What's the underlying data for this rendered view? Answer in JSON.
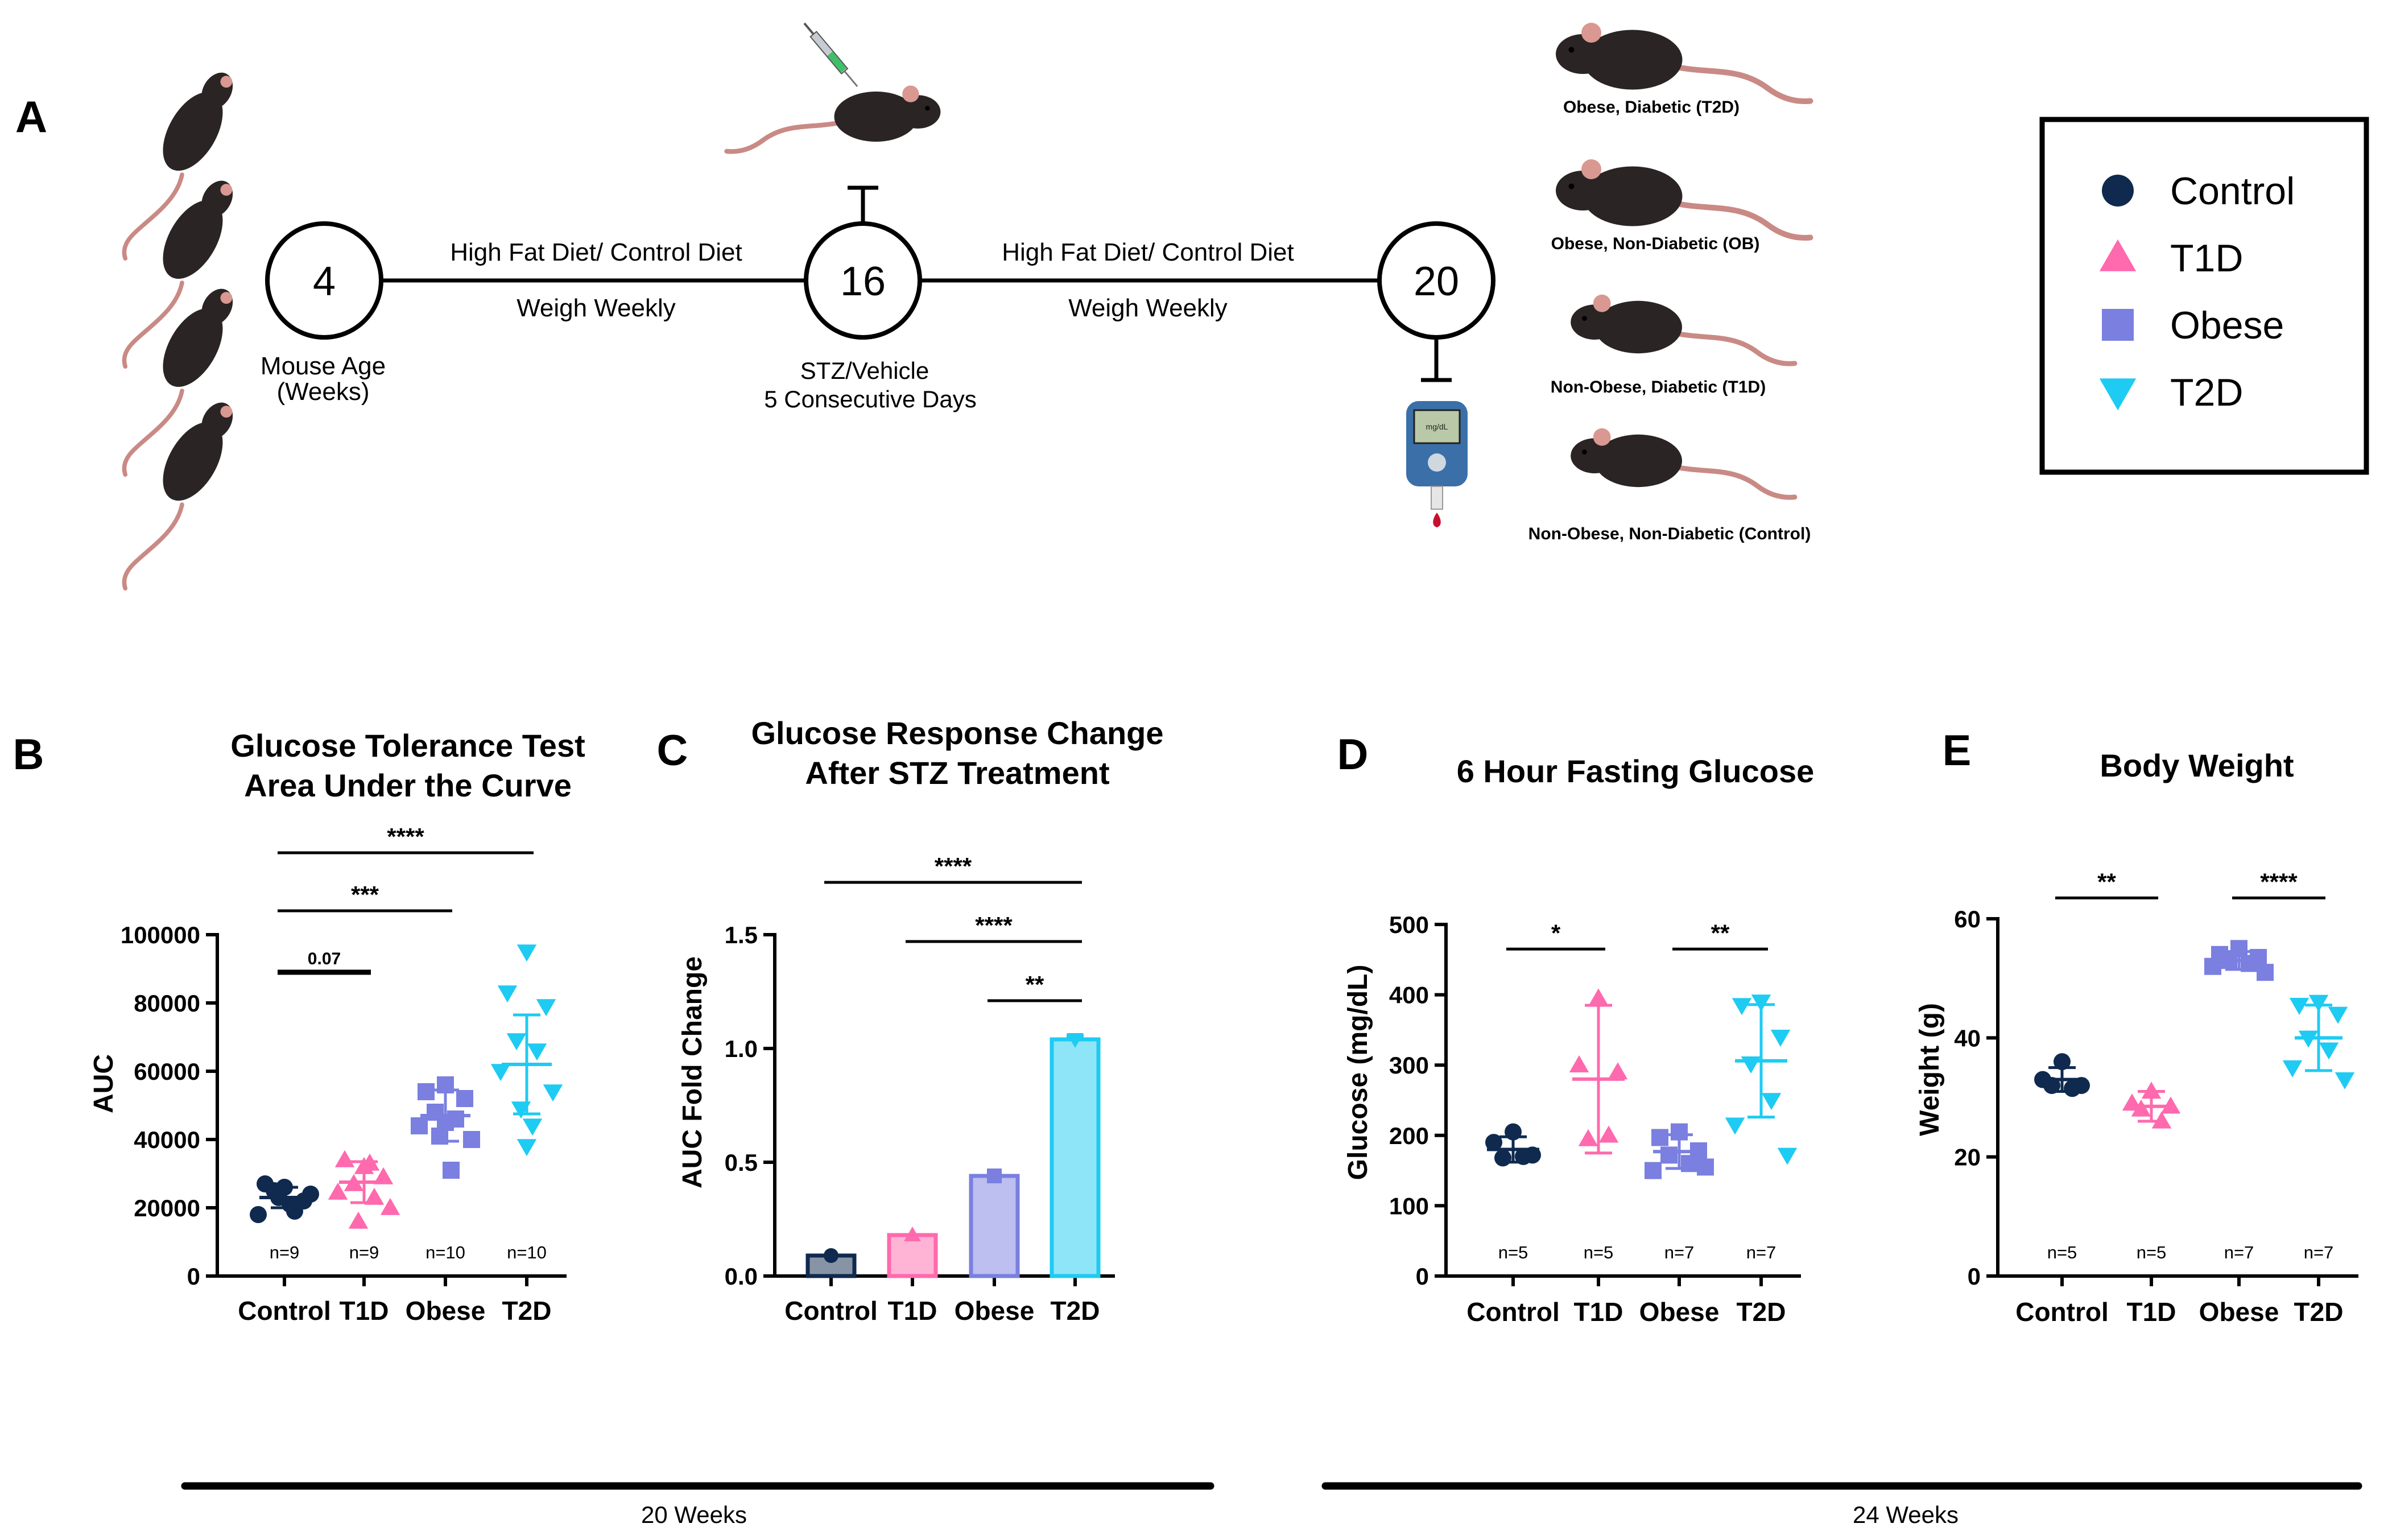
{
  "colors": {
    "control": "#0f2a4e",
    "t1d": "#ff69ad",
    "obese": "#7a7fe0",
    "t2d": "#1ecbf2",
    "mouse": "#2b2424",
    "tail": "#c98a85",
    "ear": "#d99891",
    "ink": "#000000"
  },
  "panel_a": {
    "letter": "A",
    "timeline": {
      "nodes": [
        {
          "label": "4",
          "caption_lines": [
            "Mouse Age",
            "(Weeks)"
          ]
        },
        {
          "label": "16",
          "caption_lines": [
            "STZ/Vehicle",
            "5 Consecutive Days"
          ]
        },
        {
          "label": "20",
          "caption_lines": []
        }
      ],
      "segments": [
        {
          "top": "High Fat Diet/ Control Diet",
          "bottom": "Weigh Weekly"
        },
        {
          "top": "High Fat Diet/ Control Diet",
          "bottom": "Weigh Weekly"
        }
      ]
    },
    "meter_display": "mg/dL",
    "groups": [
      "Obese, Diabetic (T2D)",
      "Obese, Non-Diabetic (OB)",
      "Non-Obese, Diabetic (T1D)",
      "Non-Obese, Non-Diabetic (Control)"
    ],
    "icons": [
      "mouse-icon",
      "syringe-icon",
      "glucometer-icon",
      "blood-drop-icon"
    ]
  },
  "legend": {
    "items": [
      {
        "label": "Control",
        "marker": "circle",
        "color": "#0f2a4e"
      },
      {
        "label": "T1D",
        "marker": "triangle-up",
        "color": "#ff69ad"
      },
      {
        "label": "Obese",
        "marker": "square",
        "color": "#7a7fe0"
      },
      {
        "label": "T2D",
        "marker": "triangle-down",
        "color": "#1ecbf2"
      }
    ]
  },
  "chart_data": [
    {
      "id": "B",
      "letter": "B",
      "type": "scatter",
      "title_lines": [
        "Glucose Tolerance Test",
        "Area Under the Curve"
      ],
      "ylabel": "AUC",
      "xlabel": "",
      "categories": [
        "Control",
        "T1D",
        "Obese",
        "T2D"
      ],
      "ylim": [
        0,
        100000
      ],
      "yticks": [
        0,
        20000,
        40000,
        60000,
        80000,
        100000
      ],
      "ytick_labels": [
        "0",
        "20000",
        "40000",
        "60000",
        "80000",
        "100000"
      ],
      "series": [
        {
          "group": "Control",
          "marker": "circle",
          "n_label": "n=9",
          "mean": 23000,
          "sd": 3000,
          "points": [
            26000,
            27000,
            22000,
            25000,
            19000,
            18000,
            24000,
            23000,
            21000
          ]
        },
        {
          "group": "T1D",
          "marker": "triangle-up",
          "n_label": "n=9",
          "mean": 27500,
          "sd": 6000,
          "points": [
            32000,
            34000,
            29000,
            27000,
            23000,
            24500,
            20000,
            16000,
            33000
          ]
        },
        {
          "group": "Obese",
          "marker": "square",
          "n_label": "n=10",
          "mean": 47000,
          "sd": 7500,
          "points": [
            56000,
            54000,
            52000,
            48000,
            46000,
            44000,
            40000,
            41000,
            31000,
            45000
          ]
        },
        {
          "group": "T2D",
          "marker": "triangle-down",
          "n_label": "n=10",
          "mean": 62000,
          "sd": 14500,
          "points": [
            95000,
            83000,
            79000,
            69000,
            66000,
            60000,
            54000,
            49000,
            44000,
            38000
          ]
        }
      ],
      "significance": [
        {
          "from": 0,
          "to": 1,
          "label": "0.07",
          "y": 89000
        },
        {
          "from": 0,
          "to": 2,
          "label": "***",
          "y": 107000
        },
        {
          "from": 0,
          "to": 3,
          "label": "****",
          "y": 124000
        }
      ]
    },
    {
      "id": "C",
      "letter": "C",
      "type": "bar",
      "title_lines": [
        "Glucose Response Change",
        "After STZ Treatment"
      ],
      "ylabel": "AUC Fold Change",
      "xlabel": "",
      "categories": [
        "Control",
        "T1D",
        "Obese",
        "T2D"
      ],
      "ylim": [
        0,
        1.5
      ],
      "yticks": [
        0,
        0.5,
        1.0,
        1.5
      ],
      "ytick_labels": [
        "0.0",
        "0.5",
        "1.0",
        "1.5"
      ],
      "values": [
        0.09,
        0.18,
        0.44,
        1.04
      ],
      "errors": [
        0,
        0,
        0,
        0.015
      ],
      "significance": [
        {
          "from": 2,
          "to": 3,
          "label": "**",
          "y": 1.21
        },
        {
          "from": 1,
          "to": 3,
          "label": "****",
          "y": 1.47
        },
        {
          "from": 0,
          "to": 3,
          "label": "****",
          "y": 1.73
        }
      ]
    },
    {
      "id": "D",
      "letter": "D",
      "type": "scatter",
      "title_lines": [
        "6 Hour Fasting Glucose"
      ],
      "ylabel": "Glucose (mg/dL)",
      "xlabel": "",
      "categories": [
        "Control",
        "T1D",
        "Obese",
        "T2D"
      ],
      "ylim": [
        0,
        500
      ],
      "yticks": [
        0,
        100,
        200,
        300,
        400,
        500
      ],
      "ytick_labels": [
        "0",
        "100",
        "200",
        "300",
        "400",
        "500"
      ],
      "series": [
        {
          "group": "Control",
          "marker": "circle",
          "n_label": "n=5",
          "mean": 180,
          "sd": 18,
          "points": [
            205,
            190,
            172,
            168,
            170
          ]
        },
        {
          "group": "T1D",
          "marker": "triangle-up",
          "n_label": "n=5",
          "mean": 280,
          "sd": 105,
          "points": [
            395,
            300,
            290,
            195,
            200
          ]
        },
        {
          "group": "Obese",
          "marker": "square",
          "n_label": "n=7",
          "mean": 177,
          "sd": 24,
          "points": [
            205,
            197,
            178,
            172,
            160,
            150,
            155
          ]
        },
        {
          "group": "T2D",
          "marker": "triangle-down",
          "n_label": "n=7",
          "mean": 306,
          "sd": 80,
          "points": [
            390,
            385,
            340,
            302,
            250,
            215,
            172
          ]
        }
      ],
      "significance": [
        {
          "from": 0,
          "to": 1,
          "label": "*",
          "y": 465
        },
        {
          "from": 2,
          "to": 3,
          "label": "**",
          "y": 465
        }
      ]
    },
    {
      "id": "E",
      "letter": "E",
      "type": "scatter",
      "title_lines": [
        "Body Weight"
      ],
      "ylabel": "Weight (g)",
      "xlabel": "",
      "categories": [
        "Control",
        "T1D",
        "Obese",
        "T2D"
      ],
      "ylim": [
        0,
        60
      ],
      "yticks": [
        0,
        20,
        40,
        60
      ],
      "ytick_labels": [
        "0",
        "20",
        "40",
        "60"
      ],
      "series": [
        {
          "group": "Control",
          "marker": "circle",
          "n_label": "n=5",
          "mean": 33,
          "sd": 2,
          "points": [
            36,
            33,
            32,
            32,
            31.5
          ]
        },
        {
          "group": "T1D",
          "marker": "triangle-up",
          "n_label": "n=5",
          "mean": 28.5,
          "sd": 2.5,
          "points": [
            31,
            29,
            28.5,
            28,
            26
          ]
        },
        {
          "group": "Obese",
          "marker": "square",
          "n_label": "n=7",
          "mean": 53,
          "sd": 1.5,
          "points": [
            55,
            54,
            53.5,
            53,
            52.5,
            52,
            51
          ]
        },
        {
          "group": "T2D",
          "marker": "triangle-down",
          "n_label": "n=7",
          "mean": 40,
          "sd": 5.5,
          "points": [
            46,
            45.5,
            44,
            40,
            38,
            35,
            33
          ]
        }
      ],
      "significance": [
        {
          "from": 0,
          "to": 1,
          "label": "**",
          "y": 63.5
        },
        {
          "from": 2,
          "to": 3,
          "label": "****",
          "y": 63.5
        }
      ]
    }
  ],
  "phases": [
    {
      "label": "20 Weeks"
    },
    {
      "label": "24 Weeks"
    }
  ]
}
